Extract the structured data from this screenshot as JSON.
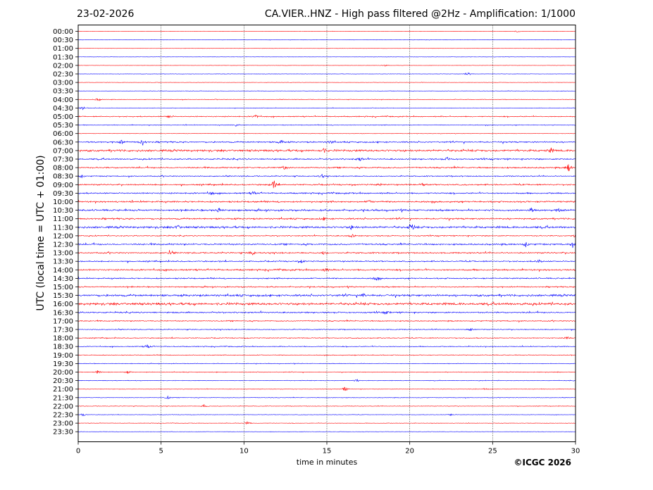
{
  "header": {
    "date": "23-02-2026",
    "title": "CA.VIER..HNZ - High pass filtered @2Hz - Amplification: 1/1000"
  },
  "footer": {
    "copyright": "©ICGC 2026"
  },
  "chart_data": {
    "type": "line",
    "title": "CA.VIER..HNZ - High pass filtered @2Hz - Amplification: 1/1000",
    "xlabel": "time in minutes",
    "ylabel": "UTC (local time = UTC + 01:00)",
    "xlim": [
      0,
      30
    ],
    "x_ticks": [
      0,
      5,
      10,
      15,
      20,
      25,
      30
    ],
    "y_tick_labels": [
      "00:00",
      "00:30",
      "01:00",
      "01:30",
      "02:00",
      "02:30",
      "03:00",
      "03:30",
      "04:00",
      "04:30",
      "05:00",
      "05:30",
      "06:00",
      "06:30",
      "07:00",
      "07:30",
      "08:00",
      "08:30",
      "09:00",
      "09:30",
      "10:00",
      "10:30",
      "11:00",
      "11:30",
      "12:00",
      "12:30",
      "13:00",
      "13:30",
      "14:00",
      "14:30",
      "15:00",
      "15:30",
      "16:00",
      "16:30",
      "17:00",
      "17:30",
      "18:00",
      "18:30",
      "19:00",
      "19:30",
      "20:00",
      "20:30",
      "21:00",
      "21:30",
      "22:00",
      "22:30",
      "23:00",
      "23:30"
    ],
    "trace_colors": [
      "#ff0000",
      "#0000ff"
    ],
    "vertical_grid": "dotted",
    "noise_levels": [
      0.15,
      0.2,
      0.15,
      0.15,
      0.15,
      0.2,
      0.2,
      0.2,
      0.3,
      0.25,
      0.6,
      0.4,
      0.2,
      0.8,
      1.2,
      0.8,
      0.8,
      0.6,
      0.8,
      0.8,
      0.9,
      1.0,
      0.9,
      1.2,
      0.6,
      0.9,
      0.8,
      0.7,
      0.9,
      0.7,
      0.7,
      1.2,
      1.4,
      0.8,
      0.6,
      0.5,
      0.5,
      0.5,
      0.4,
      0.35,
      0.4,
      0.35,
      0.3,
      0.3,
      0.3,
      0.25,
      0.25,
      0.2
    ],
    "events": [
      {
        "row": 0,
        "minute": 26.5,
        "amp": 1.5
      },
      {
        "row": 4,
        "minute": 18.5,
        "amp": 1.5
      },
      {
        "row": 5,
        "minute": 23.5,
        "amp": 3.5
      },
      {
        "row": 8,
        "minute": 1.2,
        "amp": 2.5
      },
      {
        "row": 9,
        "minute": 0.3,
        "amp": 2.5
      },
      {
        "row": 10,
        "minute": 5.5,
        "amp": 2.5
      },
      {
        "row": 10,
        "minute": 10.7,
        "amp": 2.5
      },
      {
        "row": 11,
        "minute": 9.5,
        "amp": 2.0
      },
      {
        "row": 13,
        "minute": 2.6,
        "amp": 2.5
      },
      {
        "row": 13,
        "minute": 3.9,
        "amp": 4.0
      },
      {
        "row": 13,
        "minute": 12.2,
        "amp": 4.0
      },
      {
        "row": 13,
        "minute": 15.2,
        "amp": 2.5
      },
      {
        "row": 14,
        "minute": 14.8,
        "amp": 3.5
      },
      {
        "row": 14,
        "minute": 28.5,
        "amp": 3.5
      },
      {
        "row": 15,
        "minute": 17.0,
        "amp": 3.0
      },
      {
        "row": 15,
        "minute": 22.3,
        "amp": 2.5
      },
      {
        "row": 16,
        "minute": 12.4,
        "amp": 3.0
      },
      {
        "row": 16,
        "minute": 29.6,
        "amp": 6.0
      },
      {
        "row": 17,
        "minute": 0.2,
        "amp": 2.0
      },
      {
        "row": 17,
        "minute": 14.7,
        "amp": 2.5
      },
      {
        "row": 18,
        "minute": 11.8,
        "amp": 7.0
      },
      {
        "row": 18,
        "minute": 18.2,
        "amp": 2.0
      },
      {
        "row": 18,
        "minute": 20.8,
        "amp": 2.0
      },
      {
        "row": 19,
        "minute": 8.0,
        "amp": 2.5
      },
      {
        "row": 19,
        "minute": 10.6,
        "amp": 2.5
      },
      {
        "row": 20,
        "minute": 17.6,
        "amp": 2.0
      },
      {
        "row": 21,
        "minute": 8.5,
        "amp": 3.0
      },
      {
        "row": 21,
        "minute": 27.3,
        "amp": 4.0
      },
      {
        "row": 21,
        "minute": 29.0,
        "amp": 2.5
      },
      {
        "row": 22,
        "minute": 14.8,
        "amp": 2.0
      },
      {
        "row": 23,
        "minute": 6.0,
        "amp": 3.0
      },
      {
        "row": 23,
        "minute": 16.5,
        "amp": 2.5
      },
      {
        "row": 23,
        "minute": 20.1,
        "amp": 6.0
      },
      {
        "row": 24,
        "minute": 16.5,
        "amp": 3.0
      },
      {
        "row": 24,
        "minute": 30.0,
        "amp": 3.0
      },
      {
        "row": 25,
        "minute": 27.0,
        "amp": 3.0
      },
      {
        "row": 25,
        "minute": 29.8,
        "amp": 3.5
      },
      {
        "row": 26,
        "minute": 5.5,
        "amp": 3.5
      },
      {
        "row": 26,
        "minute": 10.5,
        "amp": 3.5
      },
      {
        "row": 26,
        "minute": 14.8,
        "amp": 2.5
      },
      {
        "row": 27,
        "minute": 13.5,
        "amp": 2.5
      },
      {
        "row": 27,
        "minute": 27.8,
        "amp": 2.5
      },
      {
        "row": 28,
        "minute": 14.9,
        "amp": 3.5
      },
      {
        "row": 29,
        "minute": 18.0,
        "amp": 3.0
      },
      {
        "row": 31,
        "minute": 17.2,
        "amp": 2.5
      },
      {
        "row": 33,
        "minute": 18.6,
        "amp": 2.5
      },
      {
        "row": 35,
        "minute": 23.7,
        "amp": 2.5
      },
      {
        "row": 36,
        "minute": 29.5,
        "amp": 2.5
      },
      {
        "row": 37,
        "minute": 4.2,
        "amp": 3.5
      },
      {
        "row": 40,
        "minute": 1.2,
        "amp": 3.0
      },
      {
        "row": 40,
        "minute": 3.0,
        "amp": 1.5
      },
      {
        "row": 41,
        "minute": 16.8,
        "amp": 2.0
      },
      {
        "row": 42,
        "minute": 16.1,
        "amp": 3.5
      },
      {
        "row": 42,
        "minute": 24.6,
        "amp": 1.5
      },
      {
        "row": 43,
        "minute": 5.4,
        "amp": 2.0
      },
      {
        "row": 44,
        "minute": 7.6,
        "amp": 2.5
      },
      {
        "row": 45,
        "minute": 0.3,
        "amp": 2.0
      },
      {
        "row": 45,
        "minute": 22.5,
        "amp": 1.5
      },
      {
        "row": 46,
        "minute": 10.2,
        "amp": 2.5
      }
    ]
  }
}
